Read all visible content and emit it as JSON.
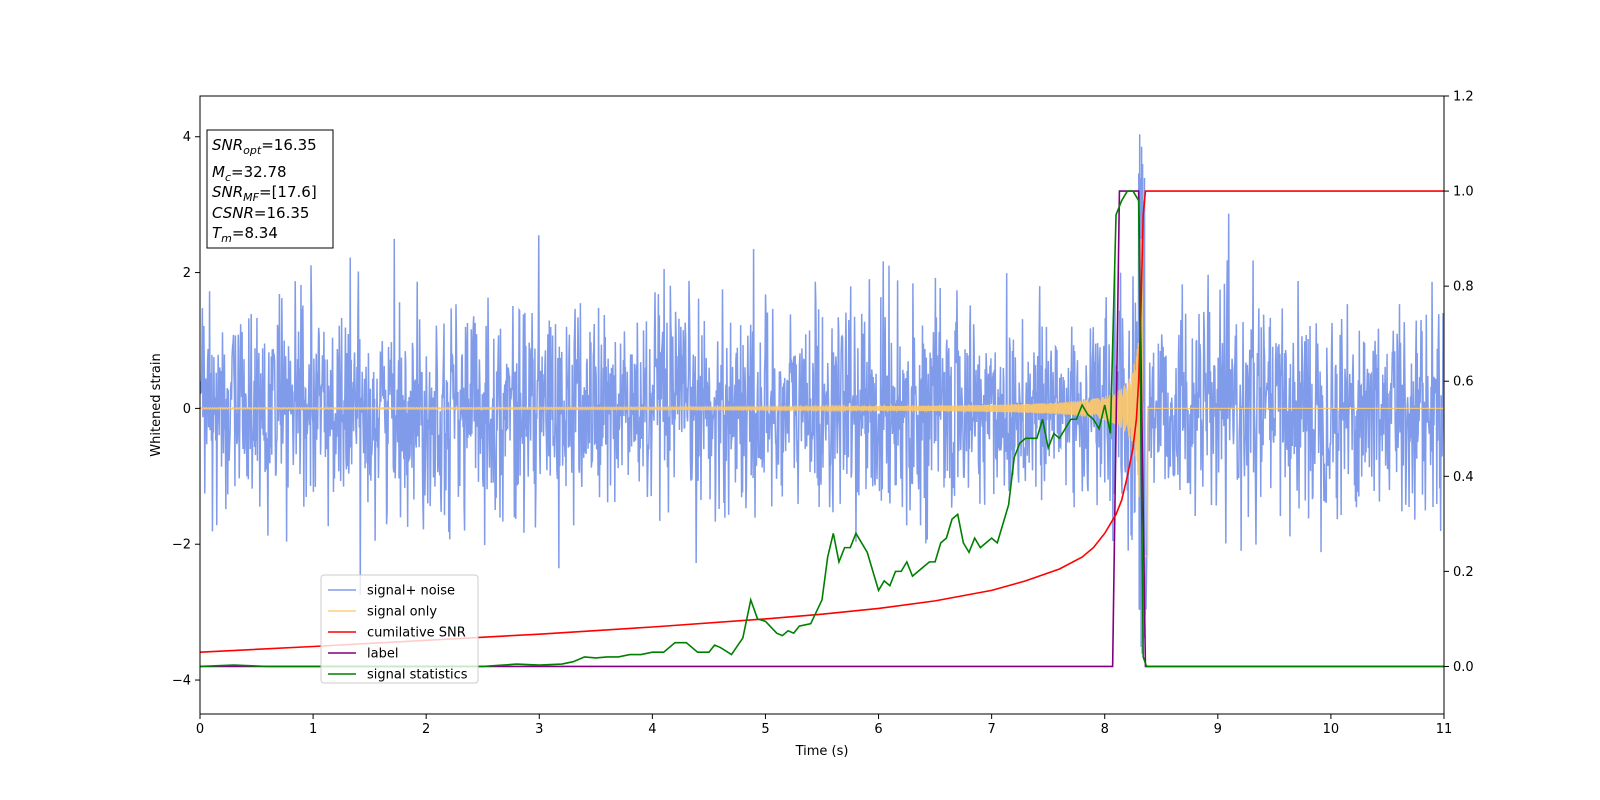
{
  "chart_data": {
    "type": "line",
    "xlabel": "Time (s)",
    "ylabel": "Whitened strain",
    "xlim": [
      0,
      11
    ],
    "ylim_left": [
      -4.5,
      4.6
    ],
    "ylim_right": [
      -0.1,
      1.2
    ],
    "x_ticks": [
      "0",
      "1",
      "2",
      "3",
      "4",
      "5",
      "6",
      "7",
      "8",
      "9",
      "10",
      "11"
    ],
    "y_left_ticks": [
      "−4",
      "−2",
      "0",
      "2",
      "4"
    ],
    "y_right_ticks": [
      "0.0",
      "0.2",
      "0.4",
      "0.6",
      "0.8",
      "1.0",
      "1.2"
    ],
    "grid": false,
    "legend_position": "lower-left",
    "annotation": {
      "snr_opt": {
        "main": "SNR",
        "sub": "opt",
        "value": "=16.35"
      },
      "mc": {
        "main": "M",
        "sub": "c",
        "value": "=32.78"
      },
      "snr_mf": {
        "main": "SNR",
        "sub": "MF",
        "value": "=[17.6]"
      },
      "csnr": {
        "main": "CSNR",
        "value": "=16.35"
      },
      "tm": {
        "main": "T",
        "sub": "m",
        "value": "=8.34"
      }
    },
    "series": [
      {
        "name": "signal+ noise",
        "color": "#6a8ae6",
        "axis": "left",
        "description_values": "dense noise, amplitude roughly ±1.5 (peaks to ±2.9), with chirp burst near 8.1–8.4 s reaching +4.2 / −4.1",
        "noise_sigma": 0.75
      },
      {
        "name": "signal only",
        "color": "#ffc966",
        "axis": "left",
        "chirp_start_amp": 0.01,
        "merger_time": 8.34,
        "peak_amp": 2.5,
        "end_time": 8.38
      },
      {
        "name": "cumilative SNR",
        "color": "#ff0000",
        "axis": "right",
        "x": [
          0,
          1,
          2,
          3,
          4,
          5,
          5.5,
          6,
          6.5,
          7,
          7.3,
          7.6,
          7.8,
          7.9,
          8.0,
          8.1,
          8.15,
          8.2,
          8.25,
          8.28,
          8.3,
          8.32,
          8.34,
          8.36,
          8.38,
          11
        ],
        "y": [
          0.03,
          0.042,
          0.055,
          0.068,
          0.083,
          0.1,
          0.11,
          0.122,
          0.138,
          0.16,
          0.18,
          0.205,
          0.23,
          0.25,
          0.28,
          0.32,
          0.35,
          0.4,
          0.46,
          0.52,
          0.6,
          0.75,
          0.95,
          1.0,
          1.0,
          1.0
        ]
      },
      {
        "name": "label",
        "color": "#800080",
        "axis": "right",
        "x": [
          0,
          8.07,
          8.13,
          8.3,
          8.36,
          8.38,
          11
        ],
        "y": [
          0,
          0,
          1.0,
          1.0,
          0.0,
          0.0,
          0.0
        ]
      },
      {
        "name": "signal statistics",
        "color": "#008000",
        "axis": "right",
        "x": [
          0,
          0.3,
          0.6,
          1.0,
          1.5,
          2.0,
          2.5,
          2.8,
          3.0,
          3.2,
          3.3,
          3.4,
          3.5,
          3.6,
          3.7,
          3.8,
          3.9,
          4.0,
          4.1,
          4.2,
          4.3,
          4.4,
          4.5,
          4.55,
          4.6,
          4.7,
          4.8,
          4.87,
          4.93,
          5.0,
          5.1,
          5.15,
          5.2,
          5.25,
          5.3,
          5.4,
          5.5,
          5.55,
          5.6,
          5.65,
          5.7,
          5.75,
          5.8,
          5.9,
          6.0,
          6.05,
          6.1,
          6.15,
          6.2,
          6.25,
          6.3,
          6.35,
          6.4,
          6.45,
          6.5,
          6.55,
          6.6,
          6.65,
          6.7,
          6.75,
          6.8,
          6.85,
          6.9,
          6.95,
          7.0,
          7.05,
          7.1,
          7.15,
          7.2,
          7.25,
          7.3,
          7.35,
          7.4,
          7.45,
          7.5,
          7.55,
          7.6,
          7.65,
          7.7,
          7.75,
          7.8,
          7.85,
          7.9,
          7.95,
          8.0,
          8.05,
          8.1,
          8.15,
          8.2,
          8.25,
          8.3,
          8.34,
          8.37,
          8.42,
          8.5,
          11
        ],
        "y": [
          0,
          0.003,
          0,
          0,
          0,
          0,
          0,
          0.005,
          0.003,
          0.005,
          0.01,
          0.02,
          0.018,
          0.02,
          0.02,
          0.025,
          0.025,
          0.03,
          0.03,
          0.05,
          0.05,
          0.03,
          0.03,
          0.045,
          0.04,
          0.025,
          0.06,
          0.14,
          0.1,
          0.095,
          0.07,
          0.065,
          0.075,
          0.07,
          0.085,
          0.09,
          0.14,
          0.23,
          0.28,
          0.22,
          0.25,
          0.25,
          0.28,
          0.24,
          0.16,
          0.18,
          0.17,
          0.2,
          0.2,
          0.22,
          0.19,
          0.2,
          0.21,
          0.22,
          0.22,
          0.26,
          0.27,
          0.31,
          0.32,
          0.26,
          0.24,
          0.27,
          0.25,
          0.26,
          0.27,
          0.26,
          0.3,
          0.34,
          0.44,
          0.47,
          0.48,
          0.48,
          0.48,
          0.52,
          0.46,
          0.49,
          0.48,
          0.5,
          0.52,
          0.52,
          0.55,
          0.53,
          0.52,
          0.5,
          0.55,
          0.49,
          0.95,
          0.98,
          1.0,
          1.0,
          0.98,
          0.02,
          0.0,
          0.0,
          0.0,
          0.0
        ]
      }
    ]
  }
}
